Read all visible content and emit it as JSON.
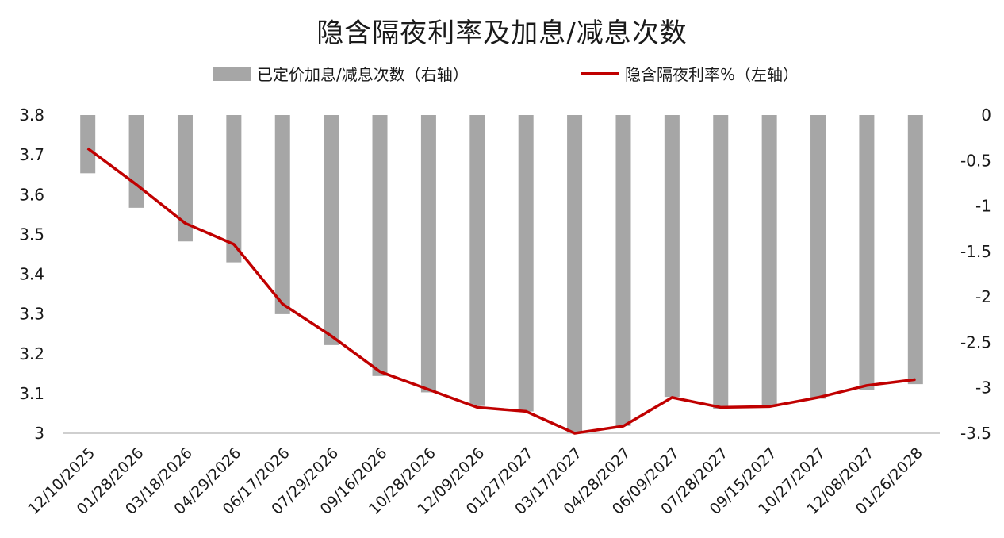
{
  "chart_data": {
    "type": "bar",
    "title": "隐含隔夜利率及加息/减息次数",
    "categories": [
      "12/10/2025",
      "01/28/2026",
      "03/18/2026",
      "04/29/2026",
      "06/17/2026",
      "07/29/2026",
      "09/16/2026",
      "10/28/2026",
      "12/09/2026",
      "01/27/2027",
      "03/17/2027",
      "04/28/2027",
      "06/09/2027",
      "07/28/2027",
      "09/15/2027",
      "10/27/2027",
      "12/08/2027",
      "01/26/2028"
    ],
    "series": [
      {
        "name": "已定价加息/减息次数（右轴）",
        "type": "bar",
        "axis": "right",
        "color": "#a6a6a6",
        "values": [
          -0.64,
          -1.02,
          -1.39,
          -1.62,
          -2.19,
          -2.53,
          -2.87,
          -3.05,
          -3.2,
          -3.26,
          -3.5,
          -3.42,
          -3.1,
          -3.23,
          -3.21,
          -3.12,
          -3.02,
          -2.96
        ]
      },
      {
        "name": "隐含隔夜利率%（左轴）",
        "type": "line",
        "axis": "left",
        "color": "#c00000",
        "values": [
          3.716,
          3.625,
          3.528,
          3.475,
          3.325,
          3.245,
          3.155,
          3.11,
          3.065,
          3.055,
          3.0,
          3.018,
          3.09,
          3.065,
          3.067,
          3.09,
          3.12,
          3.135
        ]
      }
    ],
    "y_left": {
      "ylim": [
        3.0,
        3.8
      ],
      "ticks": [
        "3.8",
        "3.7",
        "3.6",
        "3.5",
        "3.4",
        "3.3",
        "3.2",
        "3.1",
        "3"
      ]
    },
    "y_right": {
      "ylim": [
        -3.5,
        0
      ],
      "ticks": [
        "0",
        "-0.5",
        "-1",
        "-1.5",
        "-2",
        "-2.5",
        "-3",
        "-3.5"
      ]
    },
    "xlabel": "",
    "ylabel": "",
    "grid": false,
    "legend_placement": "top-center"
  }
}
